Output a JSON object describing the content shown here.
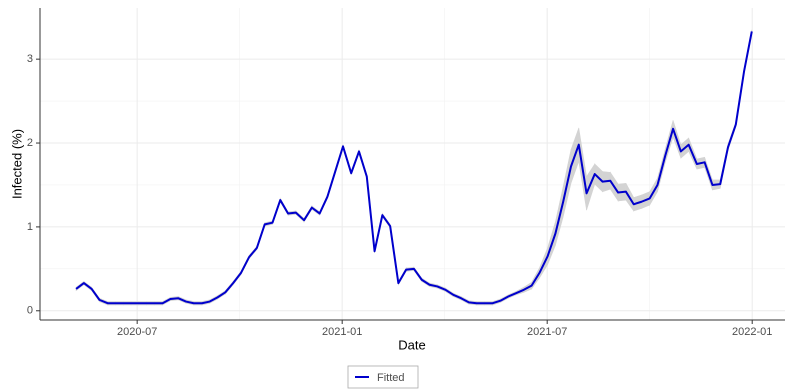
{
  "chart_data": {
    "type": "line",
    "x_label": "Date",
    "y_label": "Infected (%)",
    "x": [
      2020.351,
      2020.37,
      2020.389,
      2020.408,
      2020.428,
      2020.447,
      2020.466,
      2020.485,
      2020.504,
      2020.523,
      2020.543,
      2020.562,
      2020.581,
      2020.6,
      2020.619,
      2020.638,
      2020.658,
      2020.677,
      2020.696,
      2020.715,
      2020.734,
      2020.753,
      2020.773,
      2020.792,
      2020.811,
      2020.83,
      2020.849,
      2020.868,
      2020.887,
      2020.907,
      2020.926,
      2020.945,
      2020.964,
      2020.983,
      2021.002,
      2021.022,
      2021.041,
      2021.06,
      2021.079,
      2021.098,
      2021.117,
      2021.137,
      2021.156,
      2021.175,
      2021.194,
      2021.213,
      2021.232,
      2021.252,
      2021.271,
      2021.29,
      2021.309,
      2021.328,
      2021.347,
      2021.367,
      2021.386,
      2021.405,
      2021.424,
      2021.443,
      2021.462,
      2021.481,
      2021.501,
      2021.52,
      2021.539,
      2021.558,
      2021.577,
      2021.596,
      2021.616,
      2021.635,
      2021.654,
      2021.673,
      2021.692,
      2021.711,
      2021.73,
      2021.75,
      2021.769,
      2021.788,
      2021.807,
      2021.826,
      2021.845,
      2021.865,
      2021.884,
      2021.903,
      2021.922,
      2021.941,
      2021.96,
      2021.98,
      2021.999
    ],
    "series": [
      {
        "name": "Fitted",
        "color": "#0000cc",
        "values": [
          0.26,
          0.33,
          0.26,
          0.13,
          0.09,
          0.09,
          0.09,
          0.09,
          0.09,
          0.09,
          0.09,
          0.09,
          0.14,
          0.15,
          0.11,
          0.09,
          0.09,
          0.11,
          0.16,
          0.22,
          0.33,
          0.45,
          0.64,
          0.75,
          1.03,
          1.05,
          1.32,
          1.16,
          1.17,
          1.08,
          1.23,
          1.16,
          1.36,
          1.66,
          1.96,
          1.64,
          1.9,
          1.6,
          0.71,
          1.14,
          1.01,
          0.33,
          0.49,
          0.5,
          0.37,
          0.31,
          0.29,
          0.25,
          0.19,
          0.15,
          0.1,
          0.09,
          0.09,
          0.09,
          0.12,
          0.17,
          0.21,
          0.25,
          0.3,
          0.45,
          0.65,
          0.92,
          1.3,
          1.72,
          1.98,
          1.4,
          1.63,
          1.54,
          1.55,
          1.41,
          1.42,
          1.27,
          1.3,
          1.34,
          1.5,
          1.85,
          2.17,
          1.9,
          1.98,
          1.75,
          1.77,
          1.5,
          1.51,
          1.95,
          2.22,
          2.85,
          3.33
        ]
      }
    ],
    "band": {
      "color": "#d3d3d3",
      "lower": [
        0.24,
        0.31,
        0.24,
        0.11,
        0.07,
        0.07,
        0.07,
        0.07,
        0.07,
        0.07,
        0.07,
        0.07,
        0.12,
        0.13,
        0.09,
        0.07,
        0.07,
        0.09,
        0.14,
        0.2,
        0.31,
        0.43,
        0.62,
        0.73,
        1.01,
        1.03,
        1.3,
        1.14,
        1.15,
        1.06,
        1.21,
        1.14,
        1.34,
        1.64,
        1.94,
        1.62,
        1.88,
        1.58,
        0.69,
        1.12,
        0.99,
        0.31,
        0.47,
        0.48,
        0.35,
        0.29,
        0.27,
        0.23,
        0.17,
        0.13,
        0.08,
        0.07,
        0.07,
        0.07,
        0.1,
        0.15,
        0.19,
        0.22,
        0.26,
        0.39,
        0.55,
        0.78,
        1.12,
        1.52,
        1.78,
        1.2,
        1.51,
        1.42,
        1.45,
        1.31,
        1.32,
        1.19,
        1.22,
        1.26,
        1.42,
        1.77,
        2.07,
        1.82,
        1.9,
        1.69,
        1.71,
        1.44,
        1.46,
        1.91,
        2.19,
        2.83,
        3.31
      ],
      "upper": [
        0.28,
        0.35,
        0.28,
        0.15,
        0.11,
        0.11,
        0.11,
        0.11,
        0.11,
        0.11,
        0.11,
        0.11,
        0.16,
        0.17,
        0.13,
        0.11,
        0.11,
        0.13,
        0.18,
        0.24,
        0.35,
        0.47,
        0.66,
        0.77,
        1.05,
        1.07,
        1.34,
        1.18,
        1.19,
        1.1,
        1.25,
        1.18,
        1.38,
        1.68,
        1.98,
        1.66,
        1.92,
        1.62,
        0.73,
        1.16,
        1.03,
        0.35,
        0.51,
        0.52,
        0.39,
        0.33,
        0.31,
        0.27,
        0.21,
        0.17,
        0.12,
        0.11,
        0.11,
        0.11,
        0.14,
        0.19,
        0.23,
        0.28,
        0.34,
        0.51,
        0.75,
        1.06,
        1.48,
        1.92,
        2.18,
        1.6,
        1.75,
        1.66,
        1.65,
        1.51,
        1.52,
        1.35,
        1.38,
        1.42,
        1.58,
        1.93,
        2.27,
        1.98,
        2.06,
        1.81,
        1.83,
        1.56,
        1.56,
        1.99,
        2.25,
        2.87,
        3.35
      ]
    },
    "xlim": [
      2020.263,
      2022.08
    ],
    "xticks": [
      {
        "value": 2020.5,
        "label": "2020-07"
      },
      {
        "value": 2021.0,
        "label": "2021-01"
      },
      {
        "value": 2021.5,
        "label": "2021-07"
      },
      {
        "value": 2022.0,
        "label": "2022-01"
      }
    ],
    "ylim": [
      -0.11,
      3.61
    ],
    "yticks": [
      0,
      1,
      2,
      3
    ],
    "grid": true,
    "legend": "bottom"
  }
}
